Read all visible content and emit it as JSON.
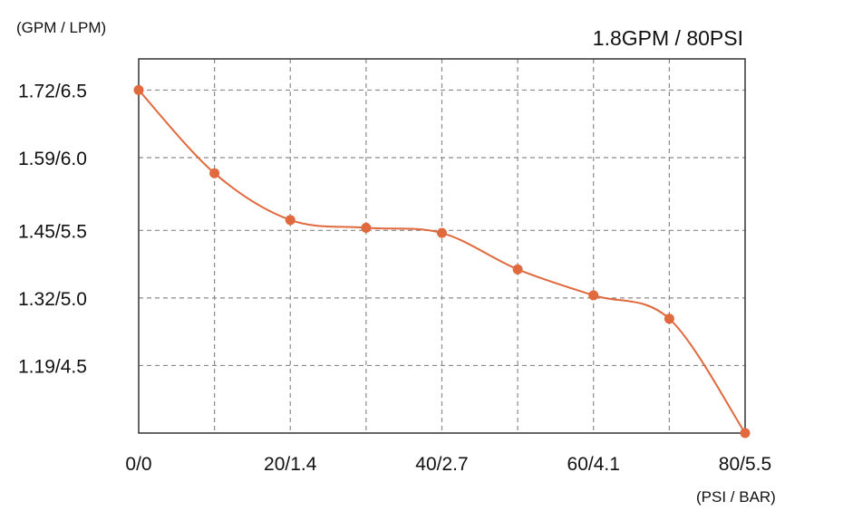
{
  "chart_data": {
    "type": "line",
    "title": "1.8GPM / 80PSI",
    "ylabel": "(GPM / LPM)",
    "xlabel": "(PSI / BAR)",
    "x_tick_labels": [
      {
        "x": 0,
        "label": "0/0"
      },
      {
        "x": 20,
        "label": "20/1.4"
      },
      {
        "x": 40,
        "label": "40/2.7"
      },
      {
        "x": 60,
        "label": "60/4.1"
      },
      {
        "x": 80,
        "label": "80/5.5"
      }
    ],
    "y_tick_labels": [
      {
        "y": 1.72,
        "label": "1.72/6.5"
      },
      {
        "y": 1.59,
        "label": "1.59/6.0"
      },
      {
        "y": 1.45,
        "label": "1.45/5.5"
      },
      {
        "y": 1.32,
        "label": "1.32/5.0"
      },
      {
        "y": 1.19,
        "label": "1.19/4.5"
      }
    ],
    "xlim": [
      0,
      80
    ],
    "ylim": [
      1.06,
      1.78
    ],
    "x_grid": [
      10,
      20,
      30,
      40,
      50,
      60,
      70
    ],
    "y_grid": [
      1.72,
      1.59,
      1.45,
      1.32,
      1.19
    ],
    "grid": true,
    "series": [
      {
        "x": [
          0,
          10,
          20,
          30,
          40,
          50,
          60,
          70,
          80
        ],
        "y": [
          1.72,
          1.56,
          1.47,
          1.455,
          1.445,
          1.375,
          1.325,
          1.28,
          1.06
        ],
        "color": "#e06a3e"
      }
    ]
  }
}
